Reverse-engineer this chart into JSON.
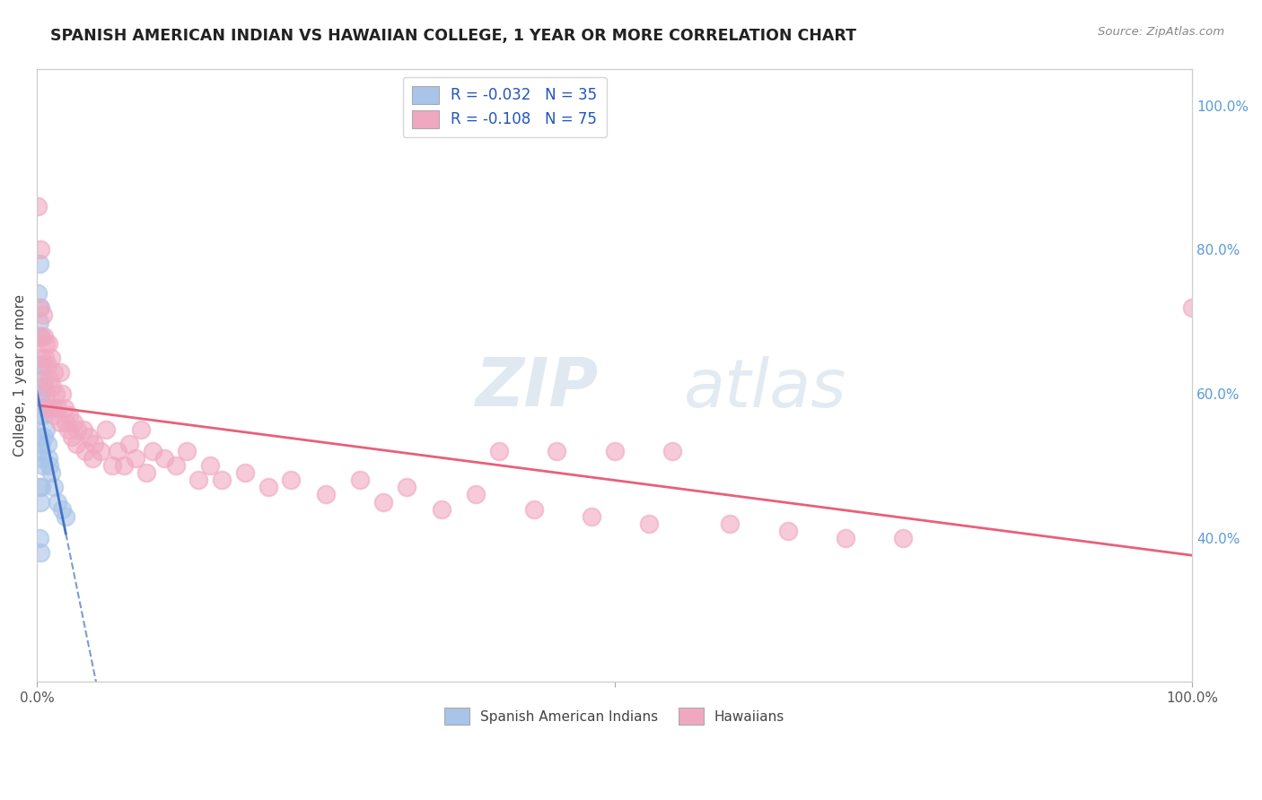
{
  "title": "SPANISH AMERICAN INDIAN VS HAWAIIAN COLLEGE, 1 YEAR OR MORE CORRELATION CHART",
  "source": "Source: ZipAtlas.com",
  "ylabel": "College, 1 year or more",
  "legend_bottom": [
    "Spanish American Indians",
    "Hawaiians"
  ],
  "blue_R": -0.032,
  "blue_N": 35,
  "pink_R": -0.108,
  "pink_N": 75,
  "blue_color": "#a8c4e8",
  "pink_color": "#f0a8c0",
  "blue_line_color": "#4472c4",
  "pink_line_color": "#e8607a",
  "right_axis_color": "#5b9bd5",
  "watermark_color": "#d8e8f0",
  "blue_points_x": [
    0.001,
    0.001,
    0.001,
    0.001,
    0.002,
    0.002,
    0.002,
    0.002,
    0.002,
    0.002,
    0.003,
    0.003,
    0.003,
    0.003,
    0.003,
    0.003,
    0.004,
    0.004,
    0.004,
    0.004,
    0.005,
    0.005,
    0.005,
    0.006,
    0.006,
    0.007,
    0.008,
    0.009,
    0.01,
    0.011,
    0.012,
    0.015,
    0.018,
    0.022,
    0.025
  ],
  "blue_points_y": [
    0.74,
    0.68,
    0.6,
    0.52,
    0.78,
    0.7,
    0.62,
    0.54,
    0.47,
    0.4,
    0.72,
    0.64,
    0.57,
    0.51,
    0.45,
    0.38,
    0.68,
    0.6,
    0.53,
    0.47,
    0.64,
    0.57,
    0.5,
    0.61,
    0.54,
    0.58,
    0.55,
    0.53,
    0.51,
    0.5,
    0.49,
    0.47,
    0.45,
    0.44,
    0.43
  ],
  "pink_points_x": [
    0.001,
    0.002,
    0.003,
    0.003,
    0.004,
    0.005,
    0.005,
    0.006,
    0.007,
    0.008,
    0.008,
    0.009,
    0.01,
    0.01,
    0.011,
    0.012,
    0.013,
    0.014,
    0.015,
    0.015,
    0.016,
    0.018,
    0.02,
    0.02,
    0.022,
    0.024,
    0.025,
    0.027,
    0.028,
    0.03,
    0.032,
    0.034,
    0.035,
    0.04,
    0.042,
    0.045,
    0.048,
    0.05,
    0.055,
    0.06,
    0.065,
    0.07,
    0.075,
    0.08,
    0.085,
    0.09,
    0.095,
    0.1,
    0.11,
    0.12,
    0.13,
    0.14,
    0.15,
    0.16,
    0.18,
    0.2,
    0.22,
    0.25,
    0.28,
    0.3,
    0.32,
    0.35,
    0.38,
    0.4,
    0.43,
    0.45,
    0.48,
    0.5,
    0.53,
    0.55,
    0.6,
    0.65,
    0.7,
    0.75,
    1.0
  ],
  "pink_points_y": [
    0.86,
    0.72,
    0.68,
    0.8,
    0.65,
    0.71,
    0.62,
    0.68,
    0.65,
    0.67,
    0.6,
    0.64,
    0.67,
    0.58,
    0.62,
    0.65,
    0.61,
    0.58,
    0.63,
    0.57,
    0.6,
    0.58,
    0.63,
    0.56,
    0.6,
    0.58,
    0.56,
    0.55,
    0.57,
    0.54,
    0.56,
    0.53,
    0.55,
    0.55,
    0.52,
    0.54,
    0.51,
    0.53,
    0.52,
    0.55,
    0.5,
    0.52,
    0.5,
    0.53,
    0.51,
    0.55,
    0.49,
    0.52,
    0.51,
    0.5,
    0.52,
    0.48,
    0.5,
    0.48,
    0.49,
    0.47,
    0.48,
    0.46,
    0.48,
    0.45,
    0.47,
    0.44,
    0.46,
    0.52,
    0.44,
    0.52,
    0.43,
    0.52,
    0.42,
    0.52,
    0.42,
    0.41,
    0.4,
    0.4,
    0.72
  ]
}
